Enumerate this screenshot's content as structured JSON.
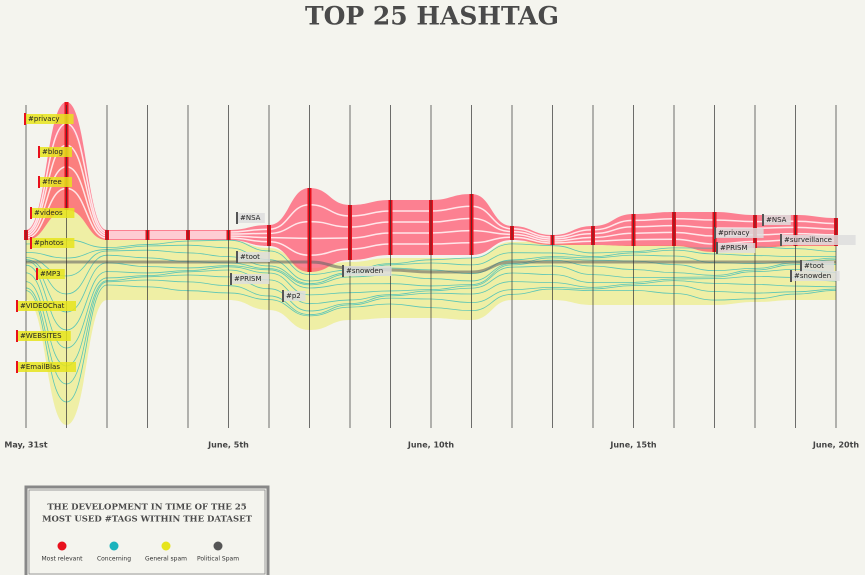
{
  "title": "TOP 25 HASHTAG",
  "dates": [
    "May, 31st",
    "June, 5th",
    "June, 10th",
    "June, 15th",
    "June, 20th"
  ],
  "hashtags": [
    "#privacy",
    "#blog",
    "#free",
    "#videos",
    "#photos",
    "#MP3",
    "#VIDEOChat",
    "#WEBSITES",
    "#EmailBlas",
    "#NSA",
    "#toot",
    "#PRISM",
    "#p2",
    "#snowden",
    "#privacy",
    "#PRISM",
    "#NSA",
    "#surveillance",
    "#toot",
    "#snowden"
  ],
  "legend": {
    "title": [
      "THE DEVELOPMENT IN TIME OF THE 25",
      "MOST USED #TAGS WITHIN THE DATASET"
    ],
    "items": [
      {
        "label": "Most relevant",
        "color": "#e8101c"
      },
      {
        "label": "Concerning",
        "color": "#1bb3bd"
      },
      {
        "label": "General spam",
        "color": "#e6e41c"
      },
      {
        "label": "Political Spam",
        "color": "#555555"
      }
    ]
  }
}
